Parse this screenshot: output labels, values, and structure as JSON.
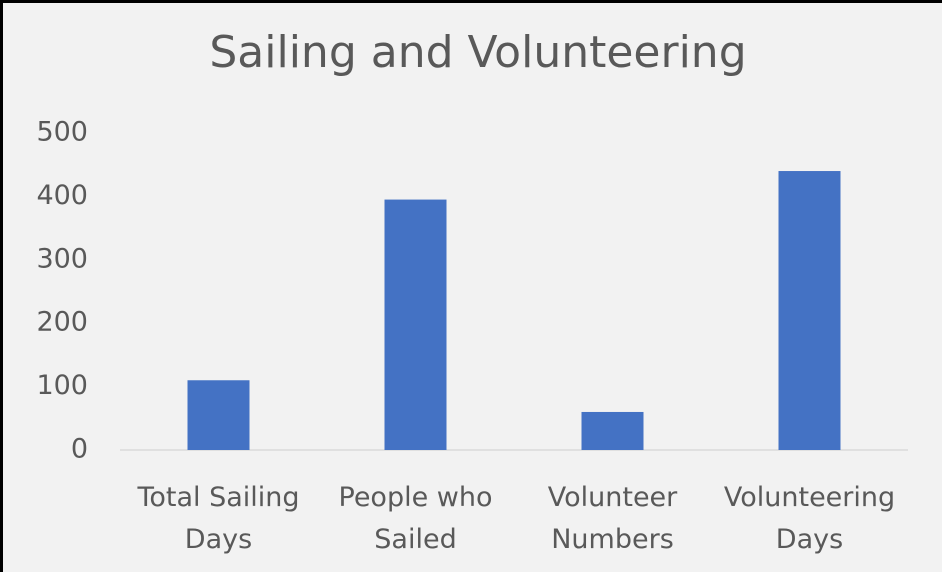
{
  "chart_data": {
    "type": "bar",
    "title": "Sailing and Volunteering",
    "categories": [
      "Total Sailing Days",
      "People who Sailed",
      "Volunteer Numbers",
      "Volunteering Days"
    ],
    "values": [
      110,
      395,
      60,
      440
    ],
    "color": "#4472c4",
    "ylim": [
      0,
      500
    ],
    "yticks": [
      0,
      100,
      200,
      300,
      400,
      500
    ],
    "grid": false
  }
}
